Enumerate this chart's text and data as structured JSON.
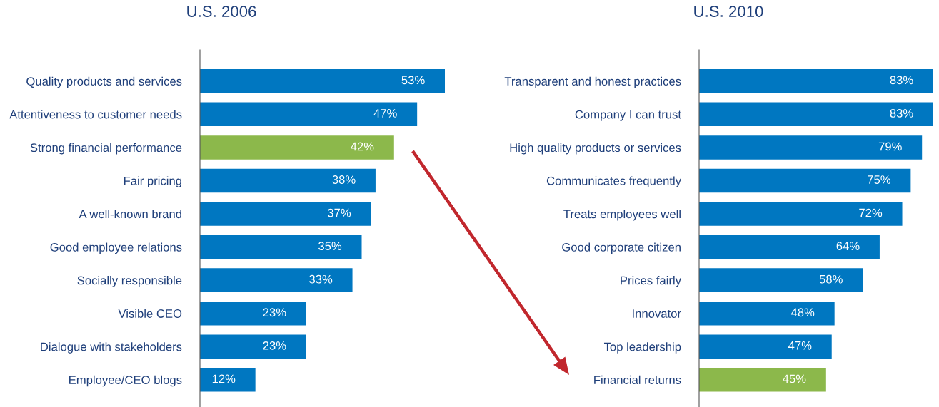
{
  "chart_data": [
    {
      "type": "bar",
      "orientation": "horizontal",
      "title": "U.S. 2006",
      "categories": [
        "Quality products and services",
        "Attentiveness to customer needs",
        "Strong financial performance",
        "Fair pricing",
        "A well-known brand",
        "Good employee relations",
        "Socially responsible",
        "Visible CEO",
        "Dialogue with stakeholders",
        "Employee/CEO blogs"
      ],
      "values": [
        53,
        47,
        42,
        38,
        37,
        35,
        33,
        23,
        23,
        12
      ],
      "value_labels": [
        "53%",
        "47%",
        "42%",
        "38%",
        "37%",
        "35%",
        "33%",
        "23%",
        "23%",
        "12%"
      ],
      "colors": [
        "#0077c1",
        "#0077c1",
        "#8cb84b",
        "#0077c1",
        "#0077c1",
        "#0077c1",
        "#0077c1",
        "#0077c1",
        "#0077c1",
        "#0077c1"
      ],
      "tick_labels": "y",
      "grid": false,
      "legend": false
    },
    {
      "type": "bar",
      "orientation": "horizontal",
      "title": "U.S. 2010",
      "categories": [
        "Transparent and honest practices",
        "Company I can trust",
        "High quality products or services",
        "Communicates frequently",
        "Treats employees well",
        "Good corporate citizen",
        "Prices fairly",
        "Innovator",
        "Top leadership",
        "Financial returns"
      ],
      "values": [
        83,
        83,
        79,
        75,
        72,
        64,
        58,
        48,
        47,
        45
      ],
      "value_labels": [
        "83%",
        "83%",
        "79%",
        "75%",
        "72%",
        "64%",
        "58%",
        "48%",
        "47%",
        "45%"
      ],
      "colors": [
        "#0077c1",
        "#0077c1",
        "#0077c1",
        "#0077c1",
        "#0077c1",
        "#0077c1",
        "#0077c1",
        "#0077c1",
        "#0077c1",
        "#8cb84b"
      ],
      "tick_labels": "y",
      "grid": false,
      "legend": false
    }
  ]
}
